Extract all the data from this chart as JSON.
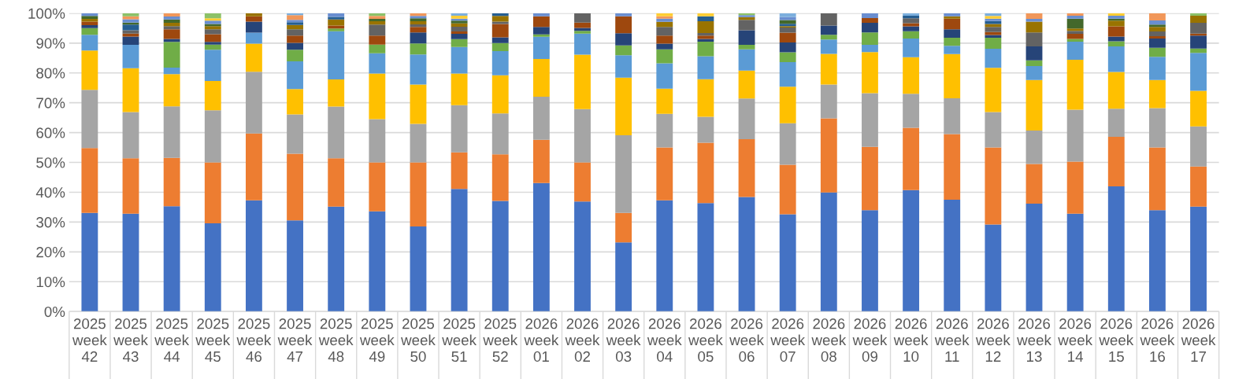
{
  "chart_data": {
    "type": "bar",
    "stacked": true,
    "grid": "y",
    "categories": [
      "2025\nweek\n42",
      "2025\nweek\n43",
      "2025\nweek\n44",
      "2025\nweek\n45",
      "2025\nweek\n46",
      "2025\nweek\n47",
      "2025\nweek\n48",
      "2025\nweek\n49",
      "2025\nweek\n50",
      "2025\nweek\n51",
      "2025\nweek\n52",
      "2026\nweek\n01",
      "2026\nweek\n02",
      "2026\nweek\n03",
      "2026\nweek\n04",
      "2026\nweek\n05",
      "2026\nweek\n06",
      "2026\nweek\n07",
      "2026\nweek\n08",
      "2026\nweek\n09",
      "2026\nweek\n10",
      "2026\nweek\n11",
      "2026\nweek\n12",
      "2026\nweek\n13",
      "2026\nweek\n14",
      "2026\nweek\n15",
      "2026\nweek\n16",
      "2026\nweek\n17"
    ],
    "ylim": [
      0,
      100
    ],
    "yticks": [
      {
        "value": 0,
        "label": "0%"
      },
      {
        "value": 10,
        "label": "10%"
      },
      {
        "value": 20,
        "label": "20%"
      },
      {
        "value": 30,
        "label": "30%"
      },
      {
        "value": 40,
        "label": "40%"
      },
      {
        "value": 50,
        "label": "50%"
      },
      {
        "value": 60,
        "label": "60%"
      },
      {
        "value": 70,
        "label": "70%"
      },
      {
        "value": 80,
        "label": "80%"
      },
      {
        "value": 90,
        "label": "90%"
      },
      {
        "value": 100,
        "label": "100%"
      }
    ],
    "series": [
      {
        "color": "#4472c4",
        "values": [
          33.1,
          32.8,
          35.3,
          29.6,
          37.3,
          30.6,
          35.2,
          33.6,
          28.5,
          41.1,
          37.1,
          43.1,
          36.9,
          23.2,
          37.3,
          36.4,
          38.4,
          32.6,
          39.9,
          34.0,
          40.7,
          37.5,
          29.2,
          36.2,
          32.8,
          42.0,
          34.0,
          35.2
        ]
      },
      {
        "color": "#ed7d31",
        "values": [
          21.7,
          18.6,
          16.2,
          20.4,
          22.4,
          22.3,
          16.2,
          16.4,
          21.5,
          12.3,
          15.6,
          14.5,
          13.1,
          9.9,
          17.7,
          20.2,
          19.4,
          16.6,
          24.9,
          21.2,
          20.9,
          22.0,
          25.8,
          13.3,
          17.5,
          16.6,
          21.0,
          13.4
        ]
      },
      {
        "color": "#a5a5a5",
        "values": [
          19.5,
          15.5,
          17.3,
          17.5,
          20.7,
          13.2,
          17.3,
          14.5,
          12.9,
          15.8,
          13.7,
          14.4,
          17.9,
          26.0,
          11.3,
          8.7,
          13.6,
          13.9,
          11.3,
          18.0,
          11.4,
          12.0,
          11.9,
          11.2,
          17.4,
          9.4,
          13.2,
          13.5
        ]
      },
      {
        "color": "#ffc000",
        "values": [
          13.2,
          14.7,
          10.8,
          9.8,
          9.4,
          8.5,
          9.1,
          15.3,
          13.2,
          10.6,
          12.8,
          12.7,
          18.2,
          19.3,
          8.4,
          12.6,
          9.4,
          12.3,
          10.3,
          13.8,
          12.3,
          14.8,
          14.8,
          16.9,
          16.7,
          12.3,
          9.4,
          11.9
        ]
      },
      {
        "color": "#5b9bd5",
        "values": [
          5.3,
          7.8,
          2.2,
          10.5,
          3.7,
          9.3,
          16.2,
          6.8,
          10.1,
          8.9,
          8.1,
          7.4,
          7.1,
          7.5,
          8.5,
          7.7,
          7.1,
          8.2,
          4.8,
          2.4,
          6.2,
          2.8,
          6.4,
          4.7,
          6.1,
          8.6,
          7.8,
          12.7
        ]
      },
      {
        "color": "#70ad47",
        "values": [
          2.2,
          0,
          8.6,
          1.7,
          0,
          3.9,
          0.9,
          2.9,
          3.7,
          2.6,
          2.7,
          0.8,
          0.9,
          3.3,
          4.7,
          4.9,
          1.5,
          3.3,
          1.6,
          4.2,
          2.5,
          2.7,
          3.7,
          1.9,
          0.9,
          1.7,
          3.0,
          1.5
        ]
      },
      {
        "color": "#264478",
        "values": [
          1.0,
          2.8,
          1.0,
          0.9,
          3.7,
          2.3,
          0,
          0,
          3.7,
          1.8,
          1.9,
          2.5,
          1.0,
          4.1,
          1.9,
          0.9,
          4.9,
          3.3,
          3.1,
          3.2,
          1.6,
          2.8,
          0.9,
          4.7,
          0,
          1.6,
          3.1,
          4.3
        ]
      },
      {
        "color": "#9e480e",
        "values": [
          1.2,
          1.0,
          3.2,
          2.6,
          1.8,
          2.4,
          1.0,
          3.0,
          1.8,
          0.8,
          4.5,
          3.6,
          1.8,
          5.7,
          2.7,
          1.1,
          0,
          3.3,
          0,
          1.6,
          1.1,
          3.6,
          1.0,
          0,
          1.7,
          3.4,
          0.8,
          0.7
        ]
      },
      {
        "color": "#636363",
        "values": [
          0,
          1.1,
          1.1,
          1.6,
          0,
          2.1,
          0,
          3.7,
          0.9,
          1.6,
          0.8,
          0,
          3.1,
          0,
          2.9,
          0.9,
          3.5,
          1.7,
          4.1,
          0,
          1.6,
          0,
          1.7,
          4.7,
          1.0,
          0,
          1.6,
          3.6
        ]
      },
      {
        "color": "#997300",
        "values": [
          0.9,
          0,
          1.1,
          1.1,
          1.0,
          1.5,
          2.0,
          1.1,
          1.0,
          1.1,
          1.9,
          0,
          0,
          0,
          1.7,
          3.9,
          0.9,
          0.5,
          0,
          0,
          0,
          0.8,
          1.0,
          3.6,
          0.8,
          1.9,
          1.5,
          2.4
        ]
      },
      {
        "color": "#255e91",
        "values": [
          0,
          1.9,
          0,
          0,
          0,
          0.9,
          0.9,
          0,
          0,
          0,
          0.9,
          0,
          0,
          0,
          0,
          1.7,
          0,
          0.8,
          0,
          0,
          0.9,
          0,
          1.0,
          0,
          0,
          0,
          0,
          0
        ]
      },
      {
        "color": "#43682b",
        "values": [
          1.0,
          0.7,
          1.1,
          0.7,
          0,
          0,
          0,
          0.8,
          1.0,
          0.9,
          0,
          0,
          0,
          0,
          0,
          0,
          0,
          1.2,
          0,
          0,
          0,
          0,
          0,
          0,
          3.3,
          0.7,
          0.8,
          0
        ]
      },
      {
        "color": "#698ed0",
        "values": [
          0.9,
          1.1,
          1.0,
          1.1,
          0,
          0.8,
          1.2,
          0,
          0.8,
          0.7,
          0,
          1.0,
          0,
          1.0,
          1.1,
          0,
          0.7,
          1.0,
          0,
          1.6,
          0,
          1.0,
          0.8,
          0.9,
          1.0,
          1.0,
          1.4,
          0
        ]
      },
      {
        "color": "#f1975a",
        "values": [
          0,
          1.0,
          1.1,
          0,
          0,
          1.6,
          0,
          1.0,
          0.9,
          0,
          0,
          0,
          0,
          0,
          0.8,
          0,
          0,
          0,
          0,
          0,
          0,
          0,
          0,
          1.9,
          0.8,
          0,
          2.4,
          0
        ]
      },
      {
        "color": "#ffcd33",
        "values": [
          0,
          0,
          0,
          0.8,
          0,
          0,
          0,
          0,
          0,
          1.0,
          0,
          0,
          0,
          0,
          1.0,
          1.0,
          0,
          0,
          0,
          0,
          0,
          0,
          0.9,
          0,
          0,
          0.8,
          0,
          0
        ]
      },
      {
        "color": "#7cafdd",
        "values": [
          0,
          0,
          0,
          0,
          0,
          0.6,
          0,
          0,
          0,
          0.8,
          0,
          0,
          0,
          0,
          0,
          0,
          0,
          1.3,
          0,
          0,
          0.8,
          0,
          0.9,
          0,
          0,
          0,
          0,
          0
        ]
      },
      {
        "color": "#8cc168",
        "values": [
          0,
          1.0,
          0,
          1.7,
          0,
          0,
          0,
          0.9,
          0,
          0,
          0,
          0,
          0,
          0,
          0,
          0,
          0.6,
          0,
          0,
          0,
          0,
          0,
          0,
          0,
          0,
          0,
          0,
          0.8
        ]
      }
    ]
  }
}
